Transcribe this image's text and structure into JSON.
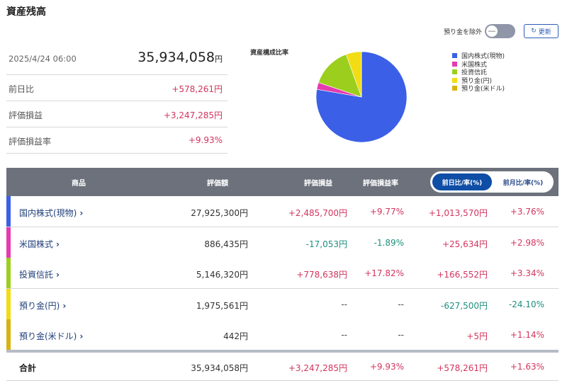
{
  "title": "資産残高",
  "summary": {
    "datetime": "2025/4/24 06:00",
    "total_value": "35,934,058",
    "total_unit": "円",
    "rows": [
      {
        "label": "前日比",
        "value": "+578,261円"
      },
      {
        "label": "評価損益",
        "value": "+3,247,285円"
      },
      {
        "label": "評価損益率",
        "value": "+9.93%"
      }
    ]
  },
  "controls": {
    "exclude_deposit_label": "預り金を除外",
    "toggle_knob": "—",
    "refresh_icon": "↻",
    "refresh_label": "更新"
  },
  "chart_data": {
    "type": "pie",
    "title": "資産構成比率",
    "categories": [
      "国内株式(現物)",
      "米国株式",
      "投資信託",
      "預り金(円)",
      "預り金(米ドル)"
    ],
    "values": [
      27925300,
      886435,
      5146320,
      1975561,
      442
    ],
    "colors": [
      "#3b5fe6",
      "#e53ab0",
      "#9ccf1d",
      "#f2dc14",
      "#d7b410"
    ],
    "legend": "right"
  },
  "table": {
    "headers": {
      "product": "商品",
      "valuation": "評価額",
      "gain": "評価損益",
      "gain_rate": "評価損益率"
    },
    "segment": {
      "active": "前日比/率(%)",
      "inactive": "前月比/率(%)"
    },
    "rows": [
      {
        "name": "国内株式(現物)",
        "color": "#3b5fe6",
        "valuation": "27,925,300円",
        "gain": "+2,485,700円",
        "gain_rate": "+9.77%",
        "change": "+1,013,570円",
        "change_rate": "+3.76%",
        "s_gain": "pos",
        "s_rate": "pos",
        "s_change": "pos",
        "s_crate": "pos"
      },
      {
        "name": "米国株式",
        "color": "#e53ab0",
        "valuation": "886,435円",
        "gain": "-17,053円",
        "gain_rate": "-1.89%",
        "change": "+25,634円",
        "change_rate": "+2.98%",
        "s_gain": "neg",
        "s_rate": "neg",
        "s_change": "pos",
        "s_crate": "pos"
      },
      {
        "name": "投資信託",
        "color": "#9ccf1d",
        "valuation": "5,146,320円",
        "gain": "+778,638円",
        "gain_rate": "+17.82%",
        "change": "+166,552円",
        "change_rate": "+3.34%",
        "s_gain": "pos",
        "s_rate": "pos",
        "s_change": "pos",
        "s_crate": "pos"
      },
      {
        "name": "預り金(円)",
        "color": "#f2dc14",
        "valuation": "1,975,561円",
        "gain": "--",
        "gain_rate": "--",
        "change": "-627,500円",
        "change_rate": "-24.10%",
        "s_gain": "neu",
        "s_rate": "neu",
        "s_change": "neg",
        "s_crate": "neg"
      },
      {
        "name": "預り金(米ドル)",
        "color": "#d7b410",
        "valuation": "442円",
        "gain": "--",
        "gain_rate": "--",
        "change": "+5円",
        "change_rate": "+1.14%",
        "s_gain": "neu",
        "s_rate": "neu",
        "s_change": "pos",
        "s_crate": "pos"
      }
    ],
    "total": {
      "label": "合計",
      "valuation": "35,934,058円",
      "gain": "+3,247,285円",
      "gain_rate": "+9.93%",
      "change": "+578,261円",
      "change_rate": "+1.63%"
    }
  }
}
